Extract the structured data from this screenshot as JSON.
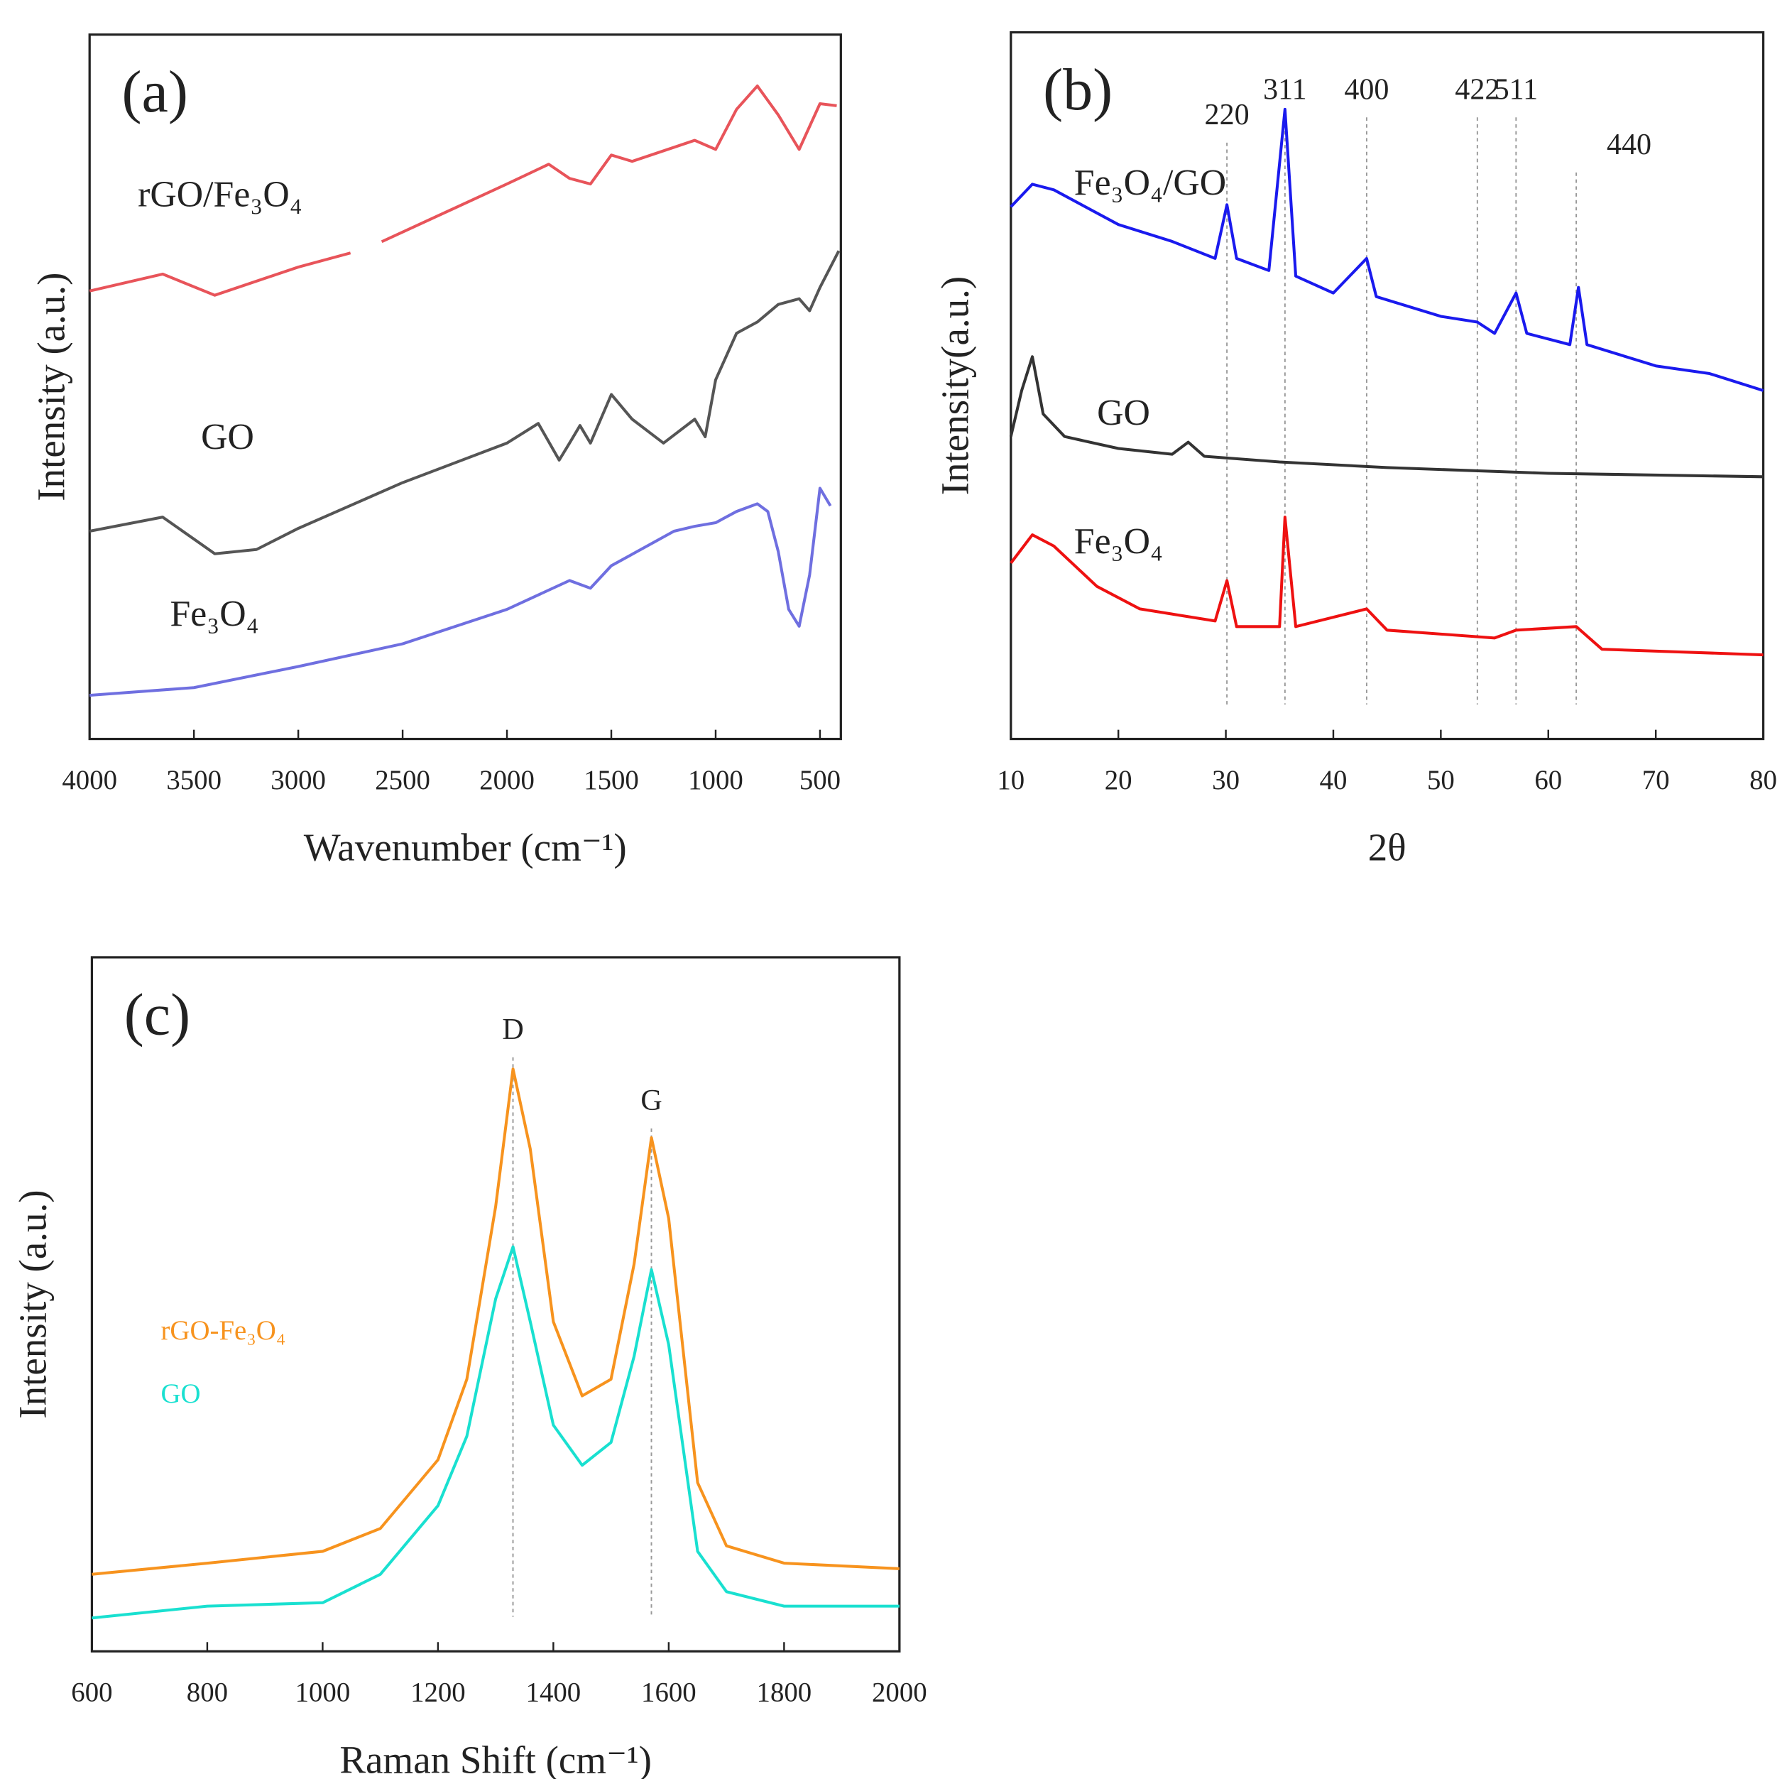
{
  "chart_data": [
    {
      "type": "line",
      "panel_label": "(a)",
      "x_label": "Wavenumber (cm⁻¹)",
      "y_label": "Intensity (a.u.)",
      "xlim": [
        4000,
        400
      ],
      "xticks": [
        4000,
        3500,
        3000,
        2500,
        2000,
        1500,
        1000,
        500
      ],
      "ylim": [
        0,
        100
      ],
      "series": [
        {
          "name": "rGO/Fe₃O₄",
          "color": "#e8545a",
          "x": [
            4000,
            3650,
            3400,
            3000,
            2750,
            2700,
            2600,
            2000,
            1800,
            1700,
            1600,
            1500,
            1400,
            1200,
            1100,
            1000,
            900,
            800,
            700,
            600,
            500,
            420
          ],
          "values": [
            63.6,
            66,
            63,
            67,
            69,
            null,
            70.6,
            78.8,
            81.6,
            79.6,
            78.8,
            82.9,
            82,
            84,
            85,
            83.7,
            89.4,
            92.7,
            88.6,
            83.7,
            90.2,
            89.9
          ]
        },
        {
          "name": "GO",
          "color": "#555555",
          "x": [
            4000,
            3650,
            3400,
            3200,
            3000,
            2500,
            2000,
            1850,
            1750,
            1700,
            1650,
            1600,
            1500,
            1400,
            1250,
            1100,
            1050,
            1000,
            900,
            800,
            700,
            600,
            550,
            500,
            410
          ],
          "values": [
            29.5,
            31.5,
            26.3,
            26.9,
            29.9,
            36.4,
            42,
            44.8,
            39.6,
            42,
            44.5,
            42,
            48.9,
            45.4,
            42,
            45.4,
            42.9,
            51,
            57.6,
            59.2,
            61.7,
            62.5,
            60.8,
            64.1,
            69.3
          ]
        },
        {
          "name": "Fe₃O₄",
          "color": "#6f6fe0",
          "x": [
            4000,
            3500,
            3000,
            2500,
            2000,
            1700,
            1600,
            1500,
            1200,
            1100,
            1000,
            900,
            800,
            750,
            700,
            650,
            600,
            550,
            500,
            450
          ],
          "values": [
            6.2,
            7.3,
            10.3,
            13.5,
            18.4,
            22.5,
            21.4,
            24.6,
            29.5,
            30.2,
            30.7,
            32.3,
            33.4,
            32.3,
            26.6,
            18.4,
            16,
            23.3,
            35.6,
            33.1
          ]
        }
      ]
    },
    {
      "type": "line",
      "panel_label": "(b)",
      "x_label": "2θ",
      "y_label": "Intensity(a.u.)",
      "xlim": [
        10,
        80
      ],
      "xticks": [
        10,
        20,
        30,
        40,
        50,
        60,
        70,
        80
      ],
      "ylim": [
        0,
        100
      ],
      "peaks": [
        {
          "label": "220",
          "x": 30.1
        },
        {
          "label": "311",
          "x": 35.5
        },
        {
          "label": "400",
          "x": 43.1
        },
        {
          "label": "422",
          "x": 53.4
        },
        {
          "label": "511",
          "x": 57.0
        },
        {
          "label": "440",
          "x": 62.6
        }
      ],
      "series": [
        {
          "name": "Fe₃O₄/GO",
          "color": "#1a1aee",
          "x": [
            10,
            12,
            14,
            20,
            25,
            29,
            30.1,
            31,
            34,
            35.5,
            36.5,
            40,
            43.1,
            44,
            50,
            53.4,
            55,
            57,
            58,
            62,
            62.8,
            63.6,
            70,
            75,
            80
          ],
          "values": [
            75.3,
            78.5,
            77.7,
            72.8,
            70.4,
            68,
            75.6,
            68,
            66.3,
            89.1,
            65.5,
            63.1,
            68,
            62.6,
            59.8,
            59,
            57.4,
            63.1,
            57.4,
            55.8,
            63.9,
            55.8,
            52.8,
            51.7,
            49.3
          ]
        },
        {
          "name": "GO",
          "color": "#333333",
          "x": [
            10,
            11,
            12,
            13,
            15,
            20,
            25,
            26.5,
            28,
            35,
            45,
            60,
            80
          ],
          "values": [
            42.8,
            49.3,
            54.1,
            46,
            42.8,
            41.1,
            40.3,
            42,
            40,
            39.2,
            38.4,
            37.6,
            37.1
          ]
        },
        {
          "name": "Fe₃O₄",
          "color": "#ee1111",
          "x": [
            10,
            12,
            14,
            18,
            22,
            29,
            30.1,
            31,
            35,
            35.5,
            36.5,
            43.1,
            45,
            55,
            57,
            62.6,
            65,
            80
          ],
          "values": [
            24.9,
            28.9,
            27.3,
            21.6,
            18.4,
            16.7,
            22.4,
            15.9,
            15.9,
            31.4,
            15.9,
            18.4,
            15.4,
            14.3,
            15.4,
            15.9,
            12.7,
            11.9
          ]
        }
      ]
    },
    {
      "type": "line",
      "panel_label": "(c)",
      "x_label": "Raman Shift (cm⁻¹)",
      "y_label": "Intensity (a.u.)",
      "xlim": [
        600,
        2000
      ],
      "xticks": [
        600,
        800,
        1000,
        1200,
        1400,
        1600,
        1800,
        2000
      ],
      "ylim": [
        0,
        100
      ],
      "peaks": [
        {
          "label": "D",
          "x": 1330
        },
        {
          "label": "G",
          "x": 1570
        }
      ],
      "series": [
        {
          "name": "rGO-Fe₃O₄",
          "color": "#f7931e",
          "x": [
            600,
            800,
            1000,
            1100,
            1200,
            1250,
            1300,
            1330,
            1360,
            1400,
            1450,
            1500,
            1540,
            1570,
            1600,
            1650,
            1700,
            1800,
            2000
          ],
          "values": [
            11.1,
            12.7,
            14.4,
            17.7,
            27.6,
            39.2,
            64.1,
            83.9,
            72.4,
            47.5,
            36.8,
            39.2,
            55.8,
            74,
            62.4,
            24.3,
            15.2,
            12.7,
            11.9
          ]
        },
        {
          "name": "GO",
          "color": "#19e0d0",
          "x": [
            600,
            800,
            1000,
            1100,
            1200,
            1250,
            1300,
            1330,
            1360,
            1400,
            1450,
            1500,
            1540,
            1570,
            1600,
            1650,
            1700,
            1800,
            2000
          ],
          "values": [
            4.8,
            6.5,
            7,
            11.1,
            21,
            31,
            50.8,
            58.3,
            47.5,
            32.6,
            26.8,
            30.1,
            42.5,
            55,
            44.2,
            14.4,
            8.6,
            6.5,
            6.5
          ]
        }
      ]
    }
  ]
}
